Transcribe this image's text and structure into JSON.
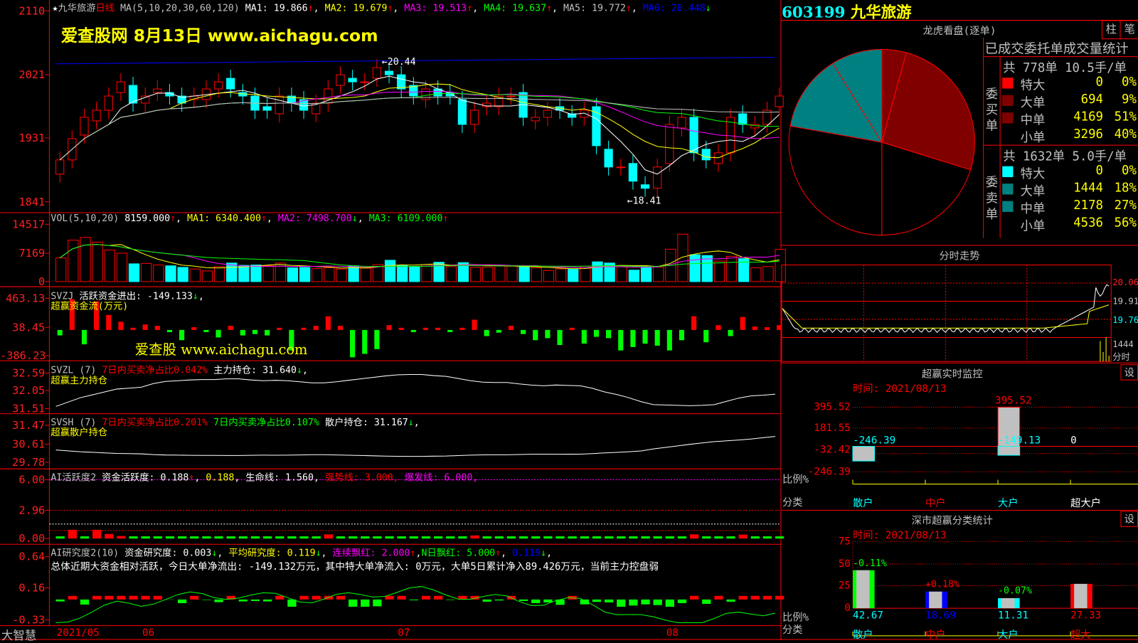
{
  "colors": {
    "up": "#ff0000",
    "down": "#00ffff",
    "ma1": "#ffffff",
    "ma2": "#ffff00",
    "ma3": "#ff00ff",
    "ma4": "#00ff00",
    "ma5": "#c0c0c0",
    "ma6": "#0000ff",
    "buy_big": "#800000",
    "sell_big": "#008080"
  },
  "header": {
    "star": "★",
    "stock_name": "九华旅游",
    "period": "日线",
    "ma_label": "MA(5,10,20,30,60,120)",
    "ma": [
      {
        "t": "MA1: 19.866",
        "c": "#ffffff",
        "a": "↑"
      },
      {
        "t": "MA2: 19.679",
        "c": "#ffff00",
        "a": "↑"
      },
      {
        "t": "MA3: 19.513",
        "c": "#ff00ff",
        "a": "↑"
      },
      {
        "t": "MA4: 19.637",
        "c": "#00ff00",
        "a": "↑"
      },
      {
        "t": "MA5: 19.772",
        "c": "#c0c0c0",
        "a": "↑"
      },
      {
        "t": "MA6: 20.448",
        "c": "#0000ff",
        "a": "↓"
      }
    ]
  },
  "watermark": {
    "top": "爱查股网    8月13日    www.aichagu.com",
    "mid": "爱查股 www.aichagu.com"
  },
  "main_chart": {
    "type": "candlestick",
    "yticks": [
      "2110",
      "2021",
      "1931",
      "1841"
    ],
    "ylim": [
      18.41,
      21.1
    ],
    "high_label": "20.44",
    "low_label": "18.41",
    "closes": [
      19.0,
      19.3,
      19.6,
      19.7,
      19.9,
      20.1,
      19.8,
      19.9,
      20.0,
      19.9,
      19.8,
      19.9,
      20.0,
      20.1,
      20.0,
      19.9,
      19.7,
      19.7,
      19.9,
      19.8,
      19.7,
      19.8,
      20.0,
      20.2,
      20.1,
      20.1,
      20.3,
      20.2,
      20.0,
      19.9,
      20.0,
      19.9,
      19.9,
      19.5,
      19.7,
      19.8,
      19.9,
      19.9,
      19.6,
      19.6,
      19.7,
      19.7,
      19.6,
      19.7,
      19.2,
      18.9,
      18.9,
      18.7,
      18.6,
      18.9,
      19.5,
      19.6,
      19.1,
      19.0,
      19.1,
      19.6,
      19.5,
      19.5,
      19.7,
      19.9
    ]
  },
  "vol": {
    "label": "VOL(5,10,20)",
    "parts": [
      {
        "t": "8159.000",
        "c": "#ffffff",
        "a": "↑"
      },
      {
        "t": "MA1: 6340.400",
        "c": "#ffff00",
        "a": "↑"
      },
      {
        "t": "MA2: 7498.700",
        "c": "#ff00ff",
        "a": "↓"
      },
      {
        "t": "MA3: 6109.000",
        "c": "#00ff00",
        "a": "↑"
      }
    ],
    "yticks": [
      "14517",
      "7169",
      "0"
    ],
    "ymax": 14517,
    "values": [
      6000,
      10500,
      11200,
      10000,
      8000,
      7200,
      4500,
      4600,
      4200,
      4000,
      3600,
      3200,
      2700,
      3800,
      4700,
      4100,
      4200,
      4000,
      4700,
      3500,
      3600,
      3300,
      3500,
      3200,
      4000,
      3400,
      4300,
      5400,
      4100,
      3700,
      4300,
      4900,
      3800,
      4800,
      3600,
      3700,
      4000,
      3900,
      3800,
      3500,
      2800,
      3200,
      3100,
      3900,
      5000,
      4700,
      3800,
      2900,
      3900,
      3700,
      8200,
      12000,
      6800,
      6600,
      5200,
      6400,
      5800,
      3500,
      3800,
      8159
    ]
  },
  "svzj": {
    "label": "SVZJ",
    "title": "活跃资金进出: -149.133",
    "arrow": "↓",
    "sub": "超赢资金流(万元)",
    "yticks": [
      "463.13",
      "38.45",
      "-386.23"
    ],
    "ylim": [
      -386.23,
      463.13
    ],
    "values": [
      -80,
      450,
      -210,
      420,
      220,
      120,
      30,
      80,
      60,
      -10,
      -150,
      40,
      -20,
      -110,
      60,
      -80,
      -60,
      -80,
      30,
      -300,
      20,
      60,
      200,
      60,
      -400,
      -350,
      -280,
      70,
      10,
      -30,
      20,
      30,
      -20,
      20,
      150,
      -90,
      -40,
      60,
      -60,
      -150,
      -120,
      -220,
      30,
      -200,
      -100,
      -120,
      -300,
      -250,
      -200,
      -230,
      -300,
      -150,
      200,
      -180,
      70,
      -90,
      190,
      50,
      40,
      70
    ]
  },
  "svzl": {
    "label": "SVZL (7)",
    "p1": "7日内买卖净占比0.042%",
    "p2": "主力持仓: 31.640",
    "arrow": "↓",
    "sub": "超赢主力持仓",
    "yticks": [
      "32.59",
      "32.05",
      "31.51"
    ],
    "ylim": [
      31.51,
      32.59
    ]
  },
  "svsh": {
    "label": "SVSH (7)",
    "p1": "7日内买卖净占比0.201%",
    "p2": "7日内买卖净占比0.107%",
    "p3": "散户持仓: 31.167",
    "arrow": "↓",
    "sub": "超赢散户持仓",
    "yticks": [
      "31.47",
      "30.61",
      "29.78"
    ],
    "ylim": [
      29.78,
      31.47
    ]
  },
  "ai_active": {
    "parts": [
      {
        "t": "AI活跃度2",
        "c": "#c0c0c0"
      },
      {
        "t": " 资金活跃度: 0.188",
        "c": "#ffffff"
      },
      {
        "t": "↑",
        "c": "#ff0000"
      },
      {
        "t": ", ",
        "c": "#ffffff"
      },
      {
        "t": "0.188",
        "c": "#ffff00"
      },
      {
        "t": ", 生命线: 1.560, ",
        "c": "#ffffff"
      },
      {
        "t": "强势线: 3.000, ",
        "c": "#ff0000"
      },
      {
        "t": "爆发线: 6.000,",
        "c": "#ff00ff"
      }
    ],
    "yticks": [
      "6.00",
      "2.96",
      "0.00"
    ]
  },
  "ai_research": {
    "parts": [
      {
        "t": "AI研究度2(10)",
        "c": "#c0c0c0"
      },
      {
        "t": " 资金研究度: 0.003",
        "c": "#ffffff"
      },
      {
        "t": "↓",
        "c": "#00ff00"
      },
      {
        "t": ", ",
        "c": "#ffffff"
      },
      {
        "t": "平均研究度: 0.119",
        "c": "#ffff00"
      },
      {
        "t": "↓",
        "c": "#00ff00"
      },
      {
        "t": ", ",
        "c": "#ffffff"
      },
      {
        "t": "连续飘红: 2.000",
        "c": "#ff00ff"
      },
      {
        "t": "↑",
        "c": "#ff0000"
      },
      {
        "t": ",",
        "c": "#ffffff"
      },
      {
        "t": "N日飘红: 5.000",
        "c": "#00ff00"
      },
      {
        "t": "↑",
        "c": "#ff0000"
      },
      {
        "t": ", ",
        "c": "#ffffff"
      },
      {
        "t": "0.119",
        "c": "#0000ff"
      },
      {
        "t": "↓",
        "c": "#00ff00"
      },
      {
        "t": ",",
        "c": "#ffffff"
      }
    ],
    "summary": "总体近期大资金相对活跃，今日大单净流出: -149.132万元，其中特大单净流入: 0万元，大单5日累计净入89.426万元，当前主力控盘弱",
    "yticks": [
      "0.64",
      "0.16",
      "-0.33"
    ]
  },
  "date_axis": {
    "app": "大智慧",
    "labels": [
      "2021/05",
      "06",
      "07",
      "08"
    ]
  },
  "right": {
    "code": "603199",
    "name": "九华旅游",
    "longhu": {
      "title": "龙虎看盘(逐单)",
      "tabs": [
        "柱",
        "笔"
      ],
      "stat_title": "已成交委托单成交量统计",
      "buy": {
        "side": "委买单",
        "summary": "共 778单 10.5手/单",
        "rows": [
          {
            "k": "特大",
            "v": "0",
            "p": "0%",
            "c": "#ff0000"
          },
          {
            "k": "大单",
            "v": "694",
            "p": "9%",
            "c": "#800000"
          },
          {
            "k": "中单",
            "v": "4169",
            "p": "51%",
            "c": "#800000"
          },
          {
            "k": "小单",
            "v": "3296",
            "p": "40%",
            "c": ""
          }
        ]
      },
      "sell": {
        "side": "委卖单",
        "summary": "共 1632单 5.0手/单",
        "rows": [
          {
            "k": "特大",
            "v": "0",
            "p": "0%",
            "c": "#00ffff"
          },
          {
            "k": "大单",
            "v": "1444",
            "p": "18%",
            "c": "#008080"
          },
          {
            "k": "中单",
            "v": "2178",
            "p": "27%",
            "c": "#008080"
          },
          {
            "k": "小单",
            "v": "4536",
            "p": "56%",
            "c": ""
          }
        ]
      }
    },
    "fenshi": {
      "title": "分时走势",
      "labels": [
        "20.06",
        "19.91",
        "19.76",
        "1444",
        "分时"
      ]
    },
    "monitor": {
      "title": "超赢实时监控",
      "set": "设",
      "time": "时间: 2021/08/13",
      "yticks": [
        "395.52",
        "181.55",
        "-32.42",
        "-246.39"
      ],
      "ratio": "比例%",
      "cat": "分类",
      "bars": [
        {
          "name": "散户",
          "v": -246.39,
          "label": "-246.39",
          "c": "#00ffff"
        },
        {
          "name": "中户",
          "v": 395.52,
          "label": "395.52",
          "c": "#ff0000"
        },
        {
          "name": "大户",
          "v": -149.13,
          "label": "-149.13",
          "c": "#00ffff"
        },
        {
          "name": "超大户",
          "v": 0,
          "label": "0",
          "c": "#ffffff"
        }
      ]
    },
    "classify": {
      "title": "深市超赢分类统计",
      "set": "设",
      "time": "时间: 2021/08/13",
      "yticks": [
        "75",
        "50",
        "25",
        "0"
      ],
      "ratio": "比例%",
      "cat": "分类",
      "bars": [
        {
          "name": "散户",
          "v": 42.67,
          "label": "42.67",
          "chg": "-0.11%",
          "c": "#00ff00",
          "nc": "#00ffff"
        },
        {
          "name": "中户",
          "v": 18.69,
          "label": "18.69",
          "chg": "+0.18%",
          "c": "#0000ff",
          "nc": "#0000ff"
        },
        {
          "name": "大户",
          "v": 11.31,
          "label": "11.31",
          "chg": "-0.07%",
          "c": "#00ffff",
          "nc": "#00ffff"
        },
        {
          "name": "超大",
          "v": 27.33,
          "label": "27.33",
          "chg": "",
          "c": "#ff0000",
          "nc": "#ff0000"
        }
      ]
    }
  }
}
